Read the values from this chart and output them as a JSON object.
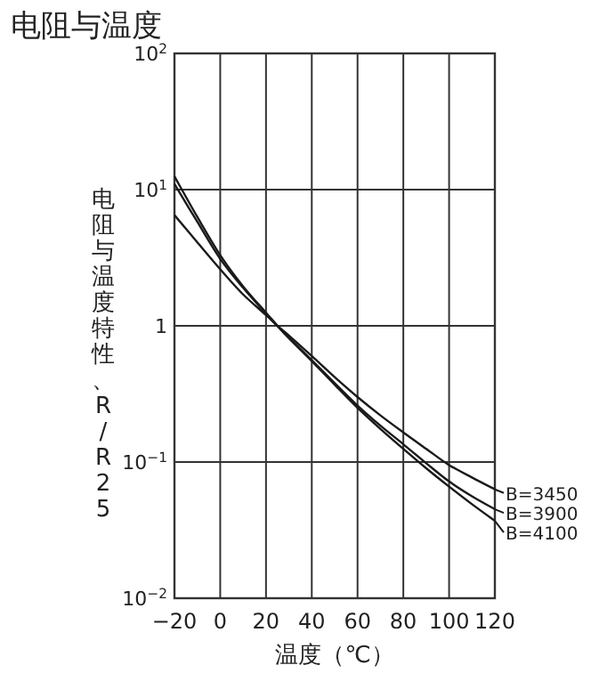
{
  "chart_data": {
    "type": "line",
    "title": "电阻与温度",
    "xlabel": "温度（℃）",
    "ylabel": "电阻与温度特性、R/R25",
    "log": "y",
    "grid": true,
    "legend": "right",
    "marker": "none",
    "line_style": "solid",
    "x": [
      -20,
      -10,
      0,
      10,
      20,
      25,
      30,
      40,
      50,
      60,
      70,
      80,
      90,
      100,
      110,
      120
    ],
    "series": [
      {
        "name": "B=3450",
        "color": "#1a1a1a",
        "values": [
          6.5,
          4.1,
          2.6,
          1.7,
          1.2,
          1,
          0.85,
          0.6,
          0.42,
          0.3,
          0.22,
          0.165,
          0.125,
          0.095,
          0.077,
          0.063
        ]
      },
      {
        "name": "B=3900",
        "color": "#1a1a1a",
        "values": [
          11,
          5.8,
          3.1,
          1.9,
          1.23,
          1,
          0.82,
          0.56,
          0.38,
          0.26,
          0.185,
          0.135,
          0.098,
          0.072,
          0.056,
          0.045
        ]
      },
      {
        "name": "B=4100",
        "color": "#1a1a1a",
        "values": [
          12.5,
          6.3,
          3.3,
          1.95,
          1.25,
          1,
          0.81,
          0.55,
          0.37,
          0.25,
          0.175,
          0.125,
          0.09,
          0.066,
          0.049,
          0.037
        ]
      }
    ],
    "xlim": [
      -20,
      120
    ],
    "xticks": [
      -20,
      0,
      20,
      40,
      60,
      80,
      100,
      120
    ],
    "ylim": [
      0.01,
      100
    ],
    "yticks": [
      {
        "value": 0.01,
        "label": "10$^{−2}$"
      },
      {
        "value": 0.1,
        "label": "10$^{−1}$"
      },
      {
        "value": 1,
        "label": "1"
      },
      {
        "value": 10,
        "label": "10$^{1}$"
      },
      {
        "value": 100,
        "label": "10$^{2}$"
      }
    ]
  }
}
